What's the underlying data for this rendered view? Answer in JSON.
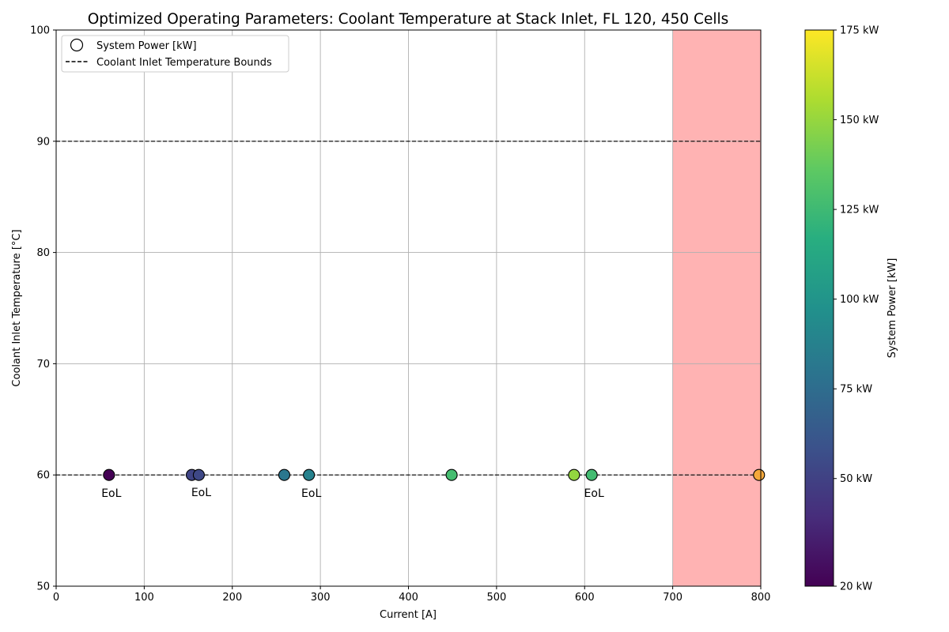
{
  "chart_data": {
    "type": "scatter",
    "title": "Optimized Operating Parameters: Coolant Temperature at Stack Inlet, FL 120, 450 Cells",
    "xlabel": "Current [A]",
    "ylabel": "Coolant Inlet Temperature [°C]",
    "xlim": [
      0,
      800
    ],
    "ylim": [
      50,
      100
    ],
    "xticks": [
      0,
      100,
      200,
      300,
      400,
      500,
      600,
      700,
      800
    ],
    "yticks": [
      50,
      60,
      70,
      80,
      90,
      100
    ],
    "grid": true,
    "legend_position": "upper left",
    "legend": {
      "marker_label": "System Power [kW]",
      "line_label": "Coolant Inlet Temperature Bounds"
    },
    "bounds": [
      60,
      90
    ],
    "infeasible_region": {
      "x_from": 700,
      "x_to": 800,
      "color": "#ffb3b3"
    },
    "points": [
      {
        "x": 60,
        "y": 60,
        "power": 20,
        "annotation": "EoL"
      },
      {
        "x": 154,
        "y": 60,
        "power": 52,
        "annotation": ""
      },
      {
        "x": 162,
        "y": 60,
        "power": 54,
        "annotation": "EoL"
      },
      {
        "x": 259,
        "y": 60,
        "power": 82,
        "annotation": ""
      },
      {
        "x": 287,
        "y": 60,
        "power": 88,
        "annotation": "EoL"
      },
      {
        "x": 449,
        "y": 60,
        "power": 128,
        "annotation": ""
      },
      {
        "x": 588,
        "y": 60,
        "power": 150,
        "annotation": ""
      },
      {
        "x": 608,
        "y": 60,
        "power": 127,
        "annotation": "EoL"
      },
      {
        "x": 798,
        "y": 60,
        "power": 190,
        "annotation": ""
      }
    ],
    "colorbar": {
      "label": "System Power [kW]",
      "min": 20,
      "max": 175,
      "ticks": [
        20,
        50,
        75,
        100,
        125,
        150,
        175
      ],
      "tick_labels": [
        "20 kW",
        "50 kW",
        "75 kW",
        "100 kW",
        "125 kW",
        "150 kW",
        "175 kW"
      ],
      "colormap": "viridis"
    }
  }
}
